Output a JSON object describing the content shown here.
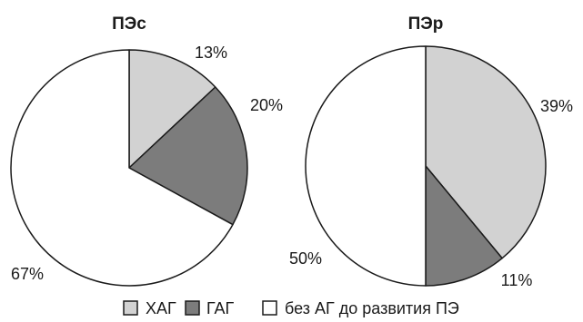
{
  "legend": {
    "items": [
      {
        "label": "ХАГ",
        "color": "#d2d2d2"
      },
      {
        "label": "ГАГ",
        "color": "#7c7c7c"
      },
      {
        "label": "без АГ до развития ПЭ",
        "color": "#ffffff"
      }
    ]
  },
  "chart_data": [
    {
      "type": "pie",
      "title": "ПЭс",
      "slices": [
        {
          "category": "ХАГ",
          "value": 13,
          "label": "13%",
          "color": "#d2d2d2"
        },
        {
          "category": "ГАГ",
          "value": 20,
          "label": "20%",
          "color": "#7c7c7c"
        },
        {
          "category": "без АГ до развития ПЭ",
          "value": 67,
          "label": "67%",
          "color": "#ffffff"
        }
      ]
    },
    {
      "type": "pie",
      "title": "ПЭр",
      "slices": [
        {
          "category": "ХАГ",
          "value": 39,
          "label": "39%",
          "color": "#d2d2d2"
        },
        {
          "category": "ГАГ",
          "value": 11,
          "label": "11%",
          "color": "#7c7c7c"
        },
        {
          "category": "без АГ до развития ПЭ",
          "value": 50,
          "label": "50%",
          "color": "#ffffff"
        }
      ]
    }
  ]
}
